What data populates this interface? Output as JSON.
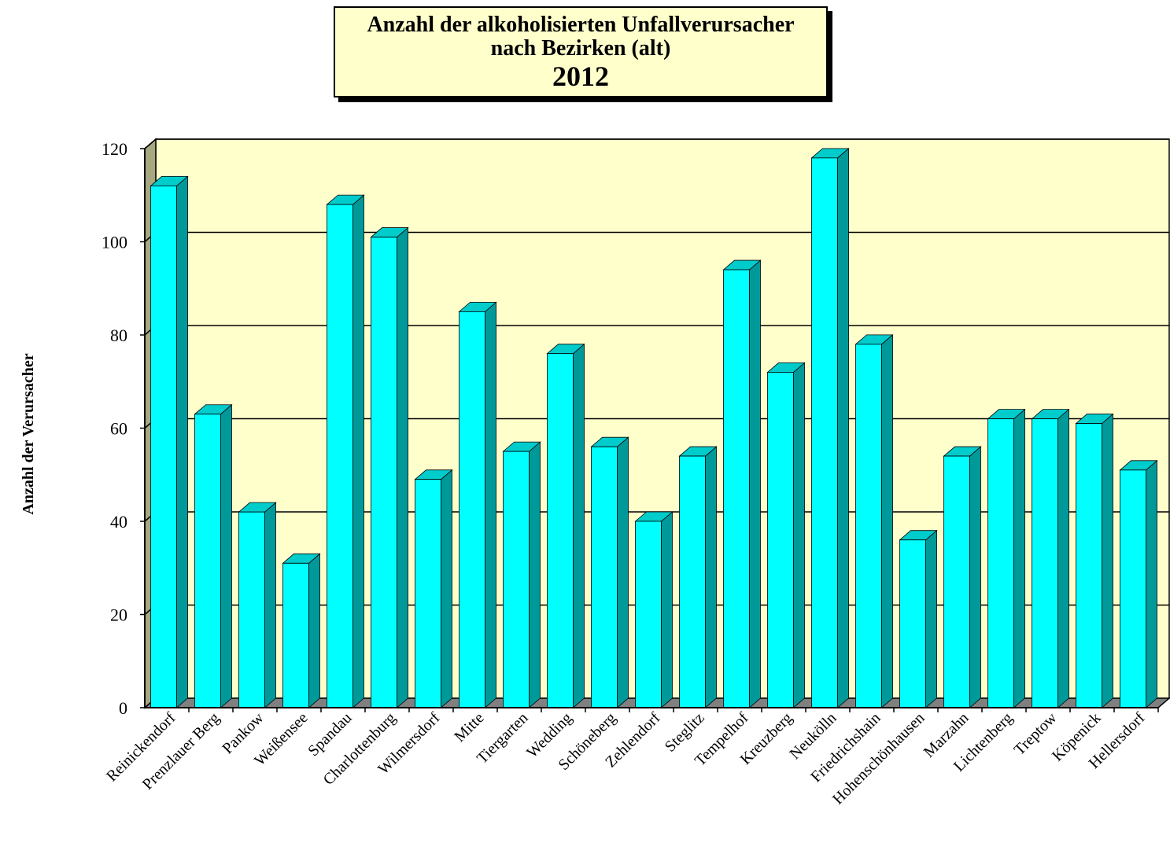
{
  "title": {
    "line1": "Anzahl der alkoholisierten Unfallverursacher",
    "line2": "nach Bezirken (alt)",
    "line3": "2012"
  },
  "chart_data": {
    "type": "bar",
    "title": "Anzahl der alkoholisierten Unfallverursacher nach Bezirken (alt) 2012",
    "ylabel": "Anzahl der Verursacher",
    "xlabel": "",
    "ylim": [
      0,
      120
    ],
    "yticks": [
      0,
      20,
      40,
      60,
      80,
      100,
      120
    ],
    "grid": true,
    "categories": [
      "Reinickendorf",
      "Prenzlauer Berg",
      "Pankow",
      "Weißensee",
      "Spandau",
      "Charlottenburg",
      "Wilmersdorf",
      "Mitte",
      "Tiergarten",
      "Wedding",
      "Schöneberg",
      "Zehlendorf",
      "Steglitz",
      "Tempelhof",
      "Kreuzberg",
      "Neukölln",
      "Friedrichshain",
      "Hohenschönhausen",
      "Marzahn",
      "Lichtenberg",
      "Treptow",
      "Köpenick",
      "Hellersdorf"
    ],
    "values": [
      112,
      63,
      42,
      31,
      108,
      101,
      49,
      85,
      55,
      76,
      56,
      40,
      54,
      94,
      72,
      118,
      78,
      36,
      54,
      62,
      62,
      61,
      51
    ]
  },
  "colors": {
    "plot_bg": "#ffffcc",
    "bar_front": "#00ffff",
    "bar_side": "#009999",
    "bar_top": "#00cccc",
    "wall_side": "#a8a880",
    "floor": "#808080"
  }
}
